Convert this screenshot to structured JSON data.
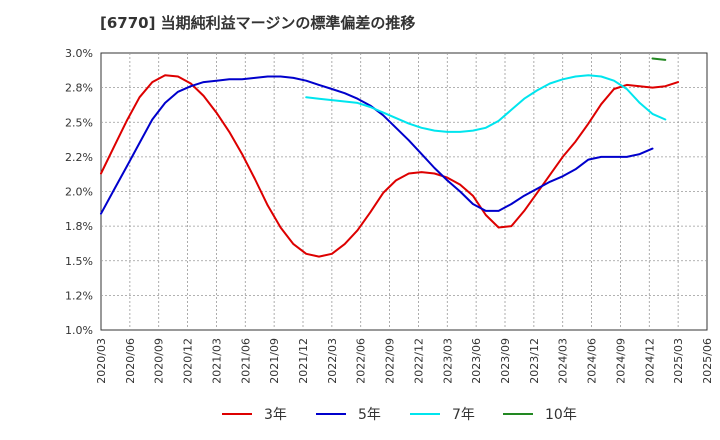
{
  "chart_data": {
    "type": "line",
    "title": "[6770]  当期純利益マージンの標準偏差の推移",
    "xlabel": "",
    "ylabel": "",
    "ylim": [
      1.0,
      3.0
    ],
    "y_ticks": [
      "1.0%",
      "1.2%",
      "1.5%",
      "1.8%",
      "2.0%",
      "2.2%",
      "2.5%",
      "2.8%",
      "3.0%"
    ],
    "x_ticks": [
      "2020/03",
      "2020/06",
      "2020/09",
      "2020/12",
      "2021/03",
      "2021/06",
      "2021/09",
      "2021/12",
      "2022/03",
      "2022/06",
      "2022/09",
      "2022/12",
      "2023/03",
      "2023/06",
      "2023/09",
      "2023/12",
      "2024/03",
      "2024/06",
      "2024/09",
      "2024/12",
      "2025/03",
      "2025/06"
    ],
    "grid": true,
    "legend_position": "bottom",
    "series": [
      {
        "name": "3年",
        "color": "#dd0000",
        "points": [
          [
            0,
            2.13
          ],
          [
            1,
            2.32
          ],
          [
            2,
            2.51
          ],
          [
            3,
            2.68
          ],
          [
            4,
            2.79
          ],
          [
            5,
            2.84
          ],
          [
            6,
            2.83
          ],
          [
            7,
            2.78
          ],
          [
            8,
            2.69
          ],
          [
            9,
            2.57
          ],
          [
            10,
            2.43
          ],
          [
            11,
            2.27
          ],
          [
            12,
            2.09
          ],
          [
            13,
            1.9
          ],
          [
            14,
            1.74
          ],
          [
            15,
            1.62
          ],
          [
            16,
            1.55
          ],
          [
            17,
            1.53
          ],
          [
            18,
            1.55
          ],
          [
            19,
            1.62
          ],
          [
            20,
            1.72
          ],
          [
            21,
            1.85
          ],
          [
            22,
            1.99
          ],
          [
            23,
            2.08
          ],
          [
            24,
            2.13
          ],
          [
            25,
            2.14
          ],
          [
            26,
            2.13
          ],
          [
            27,
            2.1
          ],
          [
            28,
            2.05
          ],
          [
            29,
            1.97
          ],
          [
            30,
            1.83
          ],
          [
            31,
            1.74
          ],
          [
            32,
            1.75
          ],
          [
            33,
            1.86
          ],
          [
            34,
            1.99
          ],
          [
            35,
            2.12
          ],
          [
            36,
            2.25
          ],
          [
            37,
            2.36
          ],
          [
            38,
            2.49
          ],
          [
            39,
            2.63
          ],
          [
            40,
            2.74
          ],
          [
            41,
            2.77
          ],
          [
            42,
            2.76
          ],
          [
            43,
            2.75
          ],
          [
            44,
            2.76
          ],
          [
            45,
            2.79
          ]
        ]
      },
      {
        "name": "5年",
        "color": "#0000cc",
        "points": [
          [
            0,
            1.84
          ],
          [
            1,
            2.01
          ],
          [
            2,
            2.18
          ],
          [
            3,
            2.35
          ],
          [
            4,
            2.52
          ],
          [
            5,
            2.64
          ],
          [
            6,
            2.72
          ],
          [
            7,
            2.76
          ],
          [
            8,
            2.79
          ],
          [
            9,
            2.8
          ],
          [
            10,
            2.81
          ],
          [
            11,
            2.81
          ],
          [
            12,
            2.82
          ],
          [
            13,
            2.83
          ],
          [
            14,
            2.83
          ],
          [
            15,
            2.82
          ],
          [
            16,
            2.8
          ],
          [
            17,
            2.77
          ],
          [
            18,
            2.74
          ],
          [
            19,
            2.71
          ],
          [
            20,
            2.67
          ],
          [
            21,
            2.62
          ],
          [
            22,
            2.55
          ],
          [
            23,
            2.46
          ],
          [
            24,
            2.37
          ],
          [
            25,
            2.27
          ],
          [
            26,
            2.17
          ],
          [
            27,
            2.08
          ],
          [
            28,
            2.0
          ],
          [
            29,
            1.91
          ],
          [
            30,
            1.86
          ],
          [
            31,
            1.86
          ],
          [
            32,
            1.91
          ],
          [
            33,
            1.97
          ],
          [
            34,
            2.02
          ],
          [
            35,
            2.07
          ],
          [
            36,
            2.11
          ],
          [
            37,
            2.16
          ],
          [
            38,
            2.23
          ],
          [
            39,
            2.25
          ],
          [
            40,
            2.25
          ],
          [
            41,
            2.25
          ],
          [
            42,
            2.27
          ],
          [
            43,
            2.31
          ]
        ]
      },
      {
        "name": "7年",
        "color": "#00e5ee",
        "points": [
          [
            16,
            2.68
          ],
          [
            17,
            2.67
          ],
          [
            18,
            2.66
          ],
          [
            19,
            2.65
          ],
          [
            20,
            2.64
          ],
          [
            21,
            2.61
          ],
          [
            22,
            2.57
          ],
          [
            23,
            2.53
          ],
          [
            24,
            2.49
          ],
          [
            25,
            2.46
          ],
          [
            26,
            2.44
          ],
          [
            27,
            2.43
          ],
          [
            28,
            2.43
          ],
          [
            29,
            2.44
          ],
          [
            30,
            2.46
          ],
          [
            31,
            2.51
          ],
          [
            32,
            2.59
          ],
          [
            33,
            2.67
          ],
          [
            34,
            2.73
          ],
          [
            35,
            2.78
          ],
          [
            36,
            2.81
          ],
          [
            37,
            2.83
          ],
          [
            38,
            2.84
          ],
          [
            39,
            2.83
          ],
          [
            40,
            2.8
          ],
          [
            41,
            2.74
          ],
          [
            42,
            2.64
          ],
          [
            43,
            2.56
          ],
          [
            44,
            2.52
          ]
        ]
      },
      {
        "name": "10年",
        "color": "#228822",
        "points": [
          [
            43,
            2.96
          ],
          [
            44,
            2.95
          ]
        ]
      }
    ]
  }
}
